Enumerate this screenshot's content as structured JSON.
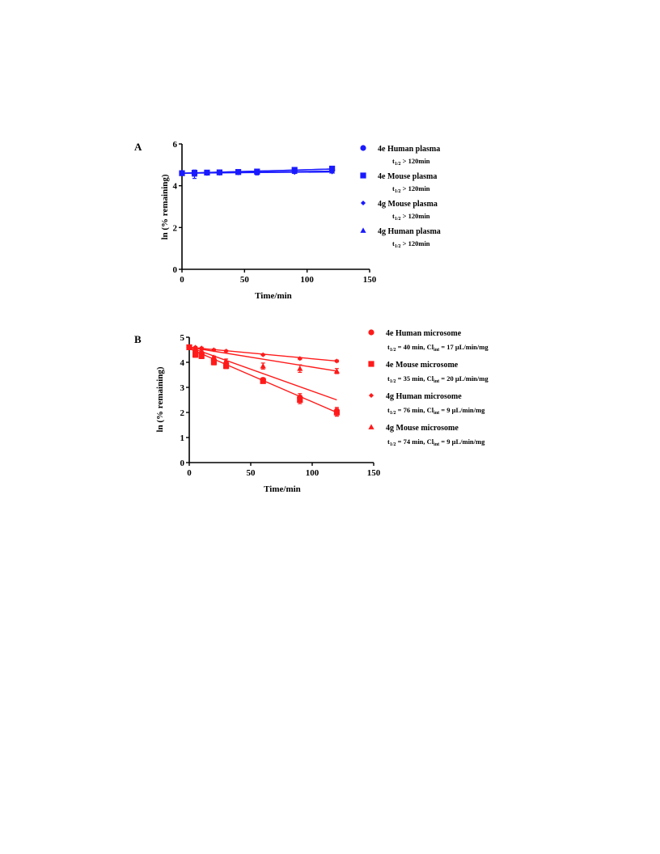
{
  "chart_data": [
    {
      "panel": "A",
      "type": "line",
      "color": "#1a1aff",
      "xlabel": "Time/min",
      "ylabel": "ln (% remaining)",
      "xlim": [
        0,
        150
      ],
      "ylim": [
        0,
        6
      ],
      "xticks": [
        0,
        50,
        100,
        150
      ],
      "yticks": [
        0,
        2,
        4,
        6
      ],
      "legend_position": "right",
      "series": [
        {
          "name": "4e Human plasma",
          "note_main": "t",
          "note_sub": "1/2",
          "note_rest": " > 120min",
          "marker": "circle",
          "x": [
            0,
            10,
            20,
            30,
            45,
            60,
            90,
            120
          ],
          "y": [
            4.61,
            4.6,
            4.62,
            4.63,
            4.65,
            4.66,
            4.7,
            4.75
          ],
          "err": [
            0.02,
            0.06,
            0.04,
            0.04,
            0.04,
            0.06,
            0.05,
            0.05
          ],
          "fit": [
            [
              0,
              4.6
            ],
            [
              120,
              4.8
            ]
          ]
        },
        {
          "name": "4e Mouse plasma",
          "note_main": "t",
          "note_sub": "1/2",
          "note_rest": " > 120min",
          "marker": "square",
          "x": [
            0,
            10,
            20,
            30,
            45,
            60,
            90,
            120
          ],
          "y": [
            4.6,
            4.62,
            4.63,
            4.64,
            4.66,
            4.68,
            4.76,
            4.82
          ],
          "err": [
            0.02,
            0.05,
            0.04,
            0.04,
            0.04,
            0.1,
            0.06,
            0.05
          ],
          "fit": [
            [
              0,
              4.6
            ],
            [
              120,
              4.8
            ]
          ]
        },
        {
          "name": "4g Mouse plasma",
          "note_main": "t",
          "note_sub": "1/2",
          "note_rest": " > 120min",
          "marker": "diamond",
          "x": [
            0,
            10,
            20,
            30,
            45,
            60,
            90,
            120
          ],
          "y": [
            4.6,
            4.58,
            4.6,
            4.61,
            4.62,
            4.62,
            4.64,
            4.66
          ],
          "err": [
            0.02,
            0.05,
            0.04,
            0.04,
            0.04,
            0.08,
            0.05,
            0.05
          ],
          "fit": [
            [
              0,
              4.6
            ],
            [
              120,
              4.66
            ]
          ]
        },
        {
          "name": "4g Human plasma",
          "note_main": "t",
          "note_sub": "1/2",
          "note_rest": " > 120min",
          "marker": "triangle",
          "x": [
            0,
            10,
            20,
            30,
            45,
            60,
            90,
            120
          ],
          "y": [
            4.6,
            4.55,
            4.6,
            4.62,
            4.63,
            4.64,
            4.68,
            4.7
          ],
          "err": [
            0.02,
            0.2,
            0.04,
            0.04,
            0.04,
            0.12,
            0.05,
            0.05
          ],
          "fit": [
            [
              0,
              4.6
            ],
            [
              120,
              4.7
            ]
          ]
        }
      ]
    },
    {
      "panel": "B",
      "type": "line",
      "color": "#ff1a1a",
      "xlabel": "Time/min",
      "ylabel": "ln (% remaining)",
      "xlim": [
        0,
        150
      ],
      "ylim": [
        0,
        5
      ],
      "xticks": [
        0,
        50,
        100,
        150
      ],
      "yticks": [
        0,
        1,
        2,
        3,
        4,
        5
      ],
      "legend_position": "right",
      "series": [
        {
          "name": "4e Human microsome",
          "note_main": "t",
          "note_sub": "1/2",
          "note_rest": " = 40 min, Cl",
          "note_sub2": "int",
          "note_rest2": " = 17 μL/min/mg",
          "marker": "circle",
          "x": [
            0,
            5,
            10,
            20,
            30,
            60,
            90,
            120
          ],
          "y": [
            4.6,
            4.45,
            4.35,
            4.1,
            3.95,
            3.3,
            2.6,
            2.05
          ],
          "err": [
            0.02,
            0.1,
            0.1,
            0.1,
            0.1,
            0.08,
            0.15,
            0.15
          ],
          "fit": [
            [
              0,
              4.6
            ],
            [
              120,
              2.5
            ]
          ]
        },
        {
          "name": "4e Mouse microsome",
          "note_main": "t",
          "note_sub": "1/2",
          "note_rest": " = 35 min, Cl",
          "note_sub2": "int",
          "note_rest2": " = 20 μL/min/mg",
          "marker": "square",
          "x": [
            0,
            5,
            10,
            20,
            30,
            60,
            90,
            120
          ],
          "y": [
            4.6,
            4.3,
            4.25,
            4.0,
            3.85,
            3.25,
            2.5,
            2.0
          ],
          "err": [
            0.02,
            0.1,
            0.1,
            0.1,
            0.1,
            0.08,
            0.15,
            0.15
          ],
          "fit": [
            [
              0,
              4.55
            ],
            [
              120,
              2.0
            ]
          ]
        },
        {
          "name": "4g Human microsome",
          "note_main": "t",
          "note_sub": "1/2",
          "note_rest": " = 76 min, Cl",
          "note_sub2": "int",
          "note_rest2": " = 9 μL/min/mg",
          "marker": "diamond",
          "x": [
            0,
            5,
            10,
            20,
            30,
            60,
            90,
            120
          ],
          "y": [
            4.6,
            4.6,
            4.57,
            4.5,
            4.45,
            4.3,
            4.15,
            4.05
          ],
          "err": [
            0.02,
            0.03,
            0.03,
            0.03,
            0.03,
            0.03,
            0.04,
            0.04
          ],
          "fit": [
            [
              0,
              4.6
            ],
            [
              120,
              4.05
            ]
          ]
        },
        {
          "name": "4g Mouse microsome",
          "note_main": "t",
          "note_sub": "1/2",
          "note_rest": " = 74 min, Cl",
          "note_sub2": "int",
          "note_rest2": " = 9 μL/min/mg",
          "marker": "triangle",
          "x": [
            0,
            5,
            10,
            20,
            30,
            60,
            90,
            120
          ],
          "y": [
            4.6,
            4.5,
            4.45,
            4.2,
            4.05,
            3.85,
            3.75,
            3.65
          ],
          "err": [
            0.02,
            0.05,
            0.05,
            0.05,
            0.08,
            0.12,
            0.15,
            0.1
          ],
          "fit": [
            [
              0,
              4.6
            ],
            [
              120,
              3.65
            ]
          ]
        }
      ]
    }
  ]
}
